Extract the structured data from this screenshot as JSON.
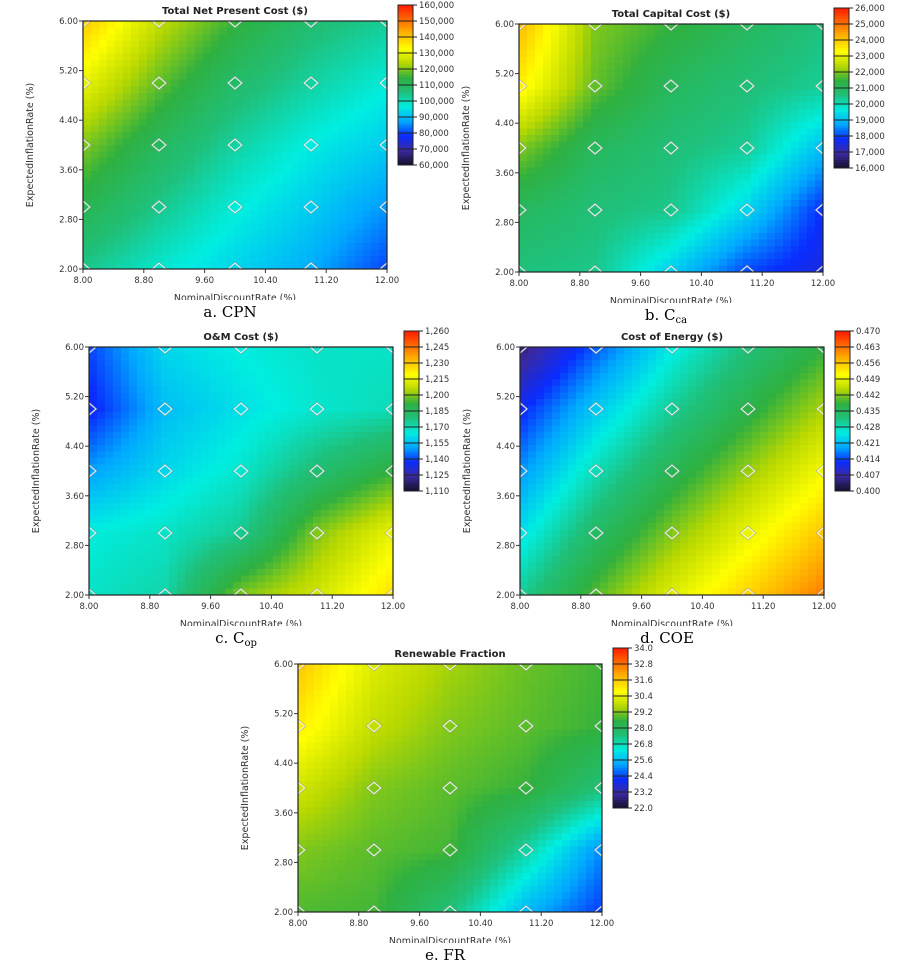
{
  "colorscale": [
    "#14102a",
    "#3a2aa0",
    "#0a2cff",
    "#00a8ff",
    "#00eee0",
    "#1fc07a",
    "#2fb040",
    "#b8d800",
    "#ffff00",
    "#ffb800",
    "#ff6a00",
    "#ff1a00"
  ],
  "chart_data": [
    {
      "type": "heatmap",
      "title": "Total Net Present Cost ($)",
      "xlabel": "NominalDiscountRate (%)",
      "ylabel": "ExpectedInflationRate (%)",
      "caption": {
        "prefix": "a. CPN",
        "sub": ""
      },
      "xlim": [
        8,
        12
      ],
      "ylim": [
        2,
        6
      ],
      "xticks": [
        "8.00",
        "8.80",
        "9.60",
        "10.40",
        "11.20",
        "12.00"
      ],
      "yticks": [
        "2.00",
        "2.80",
        "3.60",
        "4.40",
        "5.20",
        "6.00"
      ],
      "colorbar": {
        "range": [
          60000,
          160000
        ],
        "ticks": [
          "160,000",
          "150,000",
          "140,000",
          "130,000",
          "120,000",
          "110,000",
          "100,000",
          "90,000",
          "80,000",
          "70,000",
          "60,000"
        ]
      },
      "x": [
        8,
        9,
        10,
        11,
        12
      ],
      "y": [
        2,
        3,
        4,
        5,
        6
      ],
      "z": [
        [
          104000,
          98000,
          93000,
          88000,
          80000
        ],
        [
          112000,
          104000,
          97000,
          92000,
          86000
        ],
        [
          120000,
          110000,
          102000,
          96000,
          92000
        ],
        [
          130000,
          118000,
          108000,
          102000,
          97000
        ],
        [
          140000,
          125000,
          115000,
          107000,
          103000
        ]
      ]
    },
    {
      "type": "heatmap",
      "title": "Total Capital Cost ($)",
      "xlabel": "NominalDiscountRate (%)",
      "ylabel": "ExpectedInflationRate (%)",
      "caption": {
        "prefix": "b. C",
        "sub": "ca"
      },
      "xlim": [
        8,
        12
      ],
      "ylim": [
        2,
        6
      ],
      "xticks": [
        "8.00",
        "8.80",
        "9.60",
        "10.40",
        "11.20",
        "12.00"
      ],
      "yticks": [
        "2.00",
        "2.80",
        "3.60",
        "4.40",
        "5.20",
        "6.00"
      ],
      "colorbar": {
        "range": [
          16000,
          26000
        ],
        "ticks": [
          "26,000",
          "25,000",
          "24,000",
          "23,000",
          "22,000",
          "21,000",
          "20,000",
          "19,000",
          "18,000",
          "17,000",
          "16,000"
        ]
      },
      "x": [
        8,
        9,
        10,
        11,
        12
      ],
      "y": [
        2,
        3,
        4,
        5,
        6
      ],
      "z": [
        [
          20500,
          20400,
          19200,
          18000,
          17500
        ],
        [
          21000,
          20600,
          20400,
          19300,
          17800
        ],
        [
          22000,
          21000,
          20600,
          20300,
          19000
        ],
        [
          23500,
          21800,
          21000,
          20600,
          20300
        ],
        [
          24200,
          22000,
          21500,
          21000,
          20500
        ]
      ]
    },
    {
      "type": "heatmap",
      "title": "O&M Cost ($)",
      "xlabel": "NominalDiscountRate (%)",
      "ylabel": "ExpectedInflationRate (%)",
      "caption": {
        "prefix": "c. C",
        "sub": "op"
      },
      "xlim": [
        8,
        12
      ],
      "ylim": [
        2,
        6
      ],
      "xticks": [
        "8.00",
        "8.80",
        "9.60",
        "10.40",
        "11.20",
        "12.00"
      ],
      "yticks": [
        "2.00",
        "2.80",
        "3.60",
        "4.40",
        "5.20",
        "6.00"
      ],
      "colorbar": {
        "range": [
          1110,
          1260
        ],
        "ticks": [
          "1,260",
          "1,245",
          "1,230",
          "1,215",
          "1,200",
          "1,185",
          "1,170",
          "1,155",
          "1,140",
          "1,125",
          "1,110"
        ]
      },
      "x": [
        8,
        9,
        10,
        11,
        12
      ],
      "y": [
        2,
        3,
        4,
        5,
        6
      ],
      "z": [
        [
          1168,
          1172,
          1200,
          1210,
          1225
        ],
        [
          1165,
          1168,
          1175,
          1200,
          1215
        ],
        [
          1150,
          1160,
          1167,
          1180,
          1192
        ],
        [
          1135,
          1155,
          1162,
          1167,
          1170
        ],
        [
          1140,
          1160,
          1165,
          1168,
          1168
        ]
      ]
    },
    {
      "type": "heatmap",
      "title": "Cost of Energy ($)",
      "xlabel": "NominalDiscountRate (%)",
      "ylabel": "ExpectedInflationRate (%)",
      "caption": {
        "prefix": "d. COE",
        "sub": ""
      },
      "xlim": [
        8,
        12
      ],
      "ylim": [
        2,
        6
      ],
      "xticks": [
        "8.00",
        "8.80",
        "9.60",
        "10.40",
        "11.20",
        "12.00"
      ],
      "yticks": [
        "2.00",
        "2.80",
        "3.60",
        "4.40",
        "5.20",
        "6.00"
      ],
      "colorbar": {
        "range": [
          0.4,
          0.47
        ],
        "ticks": [
          "0.470",
          "0.463",
          "0.456",
          "0.449",
          "0.442",
          "0.435",
          "0.428",
          "0.421",
          "0.414",
          "0.407",
          "0.400"
        ]
      },
      "x": [
        8,
        9,
        10,
        11,
        12
      ],
      "y": [
        2,
        3,
        4,
        5,
        6
      ],
      "z": [
        [
          0.43,
          0.44,
          0.448,
          0.455,
          0.462
        ],
        [
          0.424,
          0.434,
          0.442,
          0.449,
          0.456
        ],
        [
          0.418,
          0.428,
          0.436,
          0.443,
          0.45
        ],
        [
          0.412,
          0.422,
          0.43,
          0.437,
          0.444
        ],
        [
          0.404,
          0.415,
          0.425,
          0.432,
          0.438
        ]
      ]
    },
    {
      "type": "heatmap",
      "title": "Renewable Fraction",
      "xlabel": "NominalDiscountRate (%)",
      "ylabel": "ExpectedInflationRate (%)",
      "caption": {
        "prefix": "e. FR",
        "sub": ""
      },
      "xlim": [
        8,
        12
      ],
      "ylim": [
        2,
        6
      ],
      "xticks": [
        "8.00",
        "8.80",
        "9.60",
        "10.40",
        "11.20",
        "12.00"
      ],
      "yticks": [
        "2.00",
        "2.80",
        "3.60",
        "4.40",
        "5.20",
        "6.00"
      ],
      "colorbar": {
        "range": [
          22.0,
          34.0
        ],
        "ticks": [
          "34.0",
          "32.8",
          "31.6",
          "30.4",
          "29.2",
          "28.0",
          "26.8",
          "25.6",
          "24.4",
          "23.2",
          "22.0"
        ]
      },
      "x": [
        8,
        9,
        10,
        11,
        12
      ],
      "y": [
        2,
        3,
        4,
        5,
        6
      ],
      "z": [
        [
          28.8,
          28.7,
          27.5,
          25.5,
          24.3
        ],
        [
          29.2,
          28.9,
          28.7,
          27.0,
          25.0
        ],
        [
          30.0,
          29.2,
          28.9,
          28.6,
          27.5
        ],
        [
          31.0,
          29.8,
          29.2,
          28.9,
          28.6
        ],
        [
          31.6,
          30.2,
          29.5,
          29.0,
          28.7
        ]
      ]
    }
  ]
}
